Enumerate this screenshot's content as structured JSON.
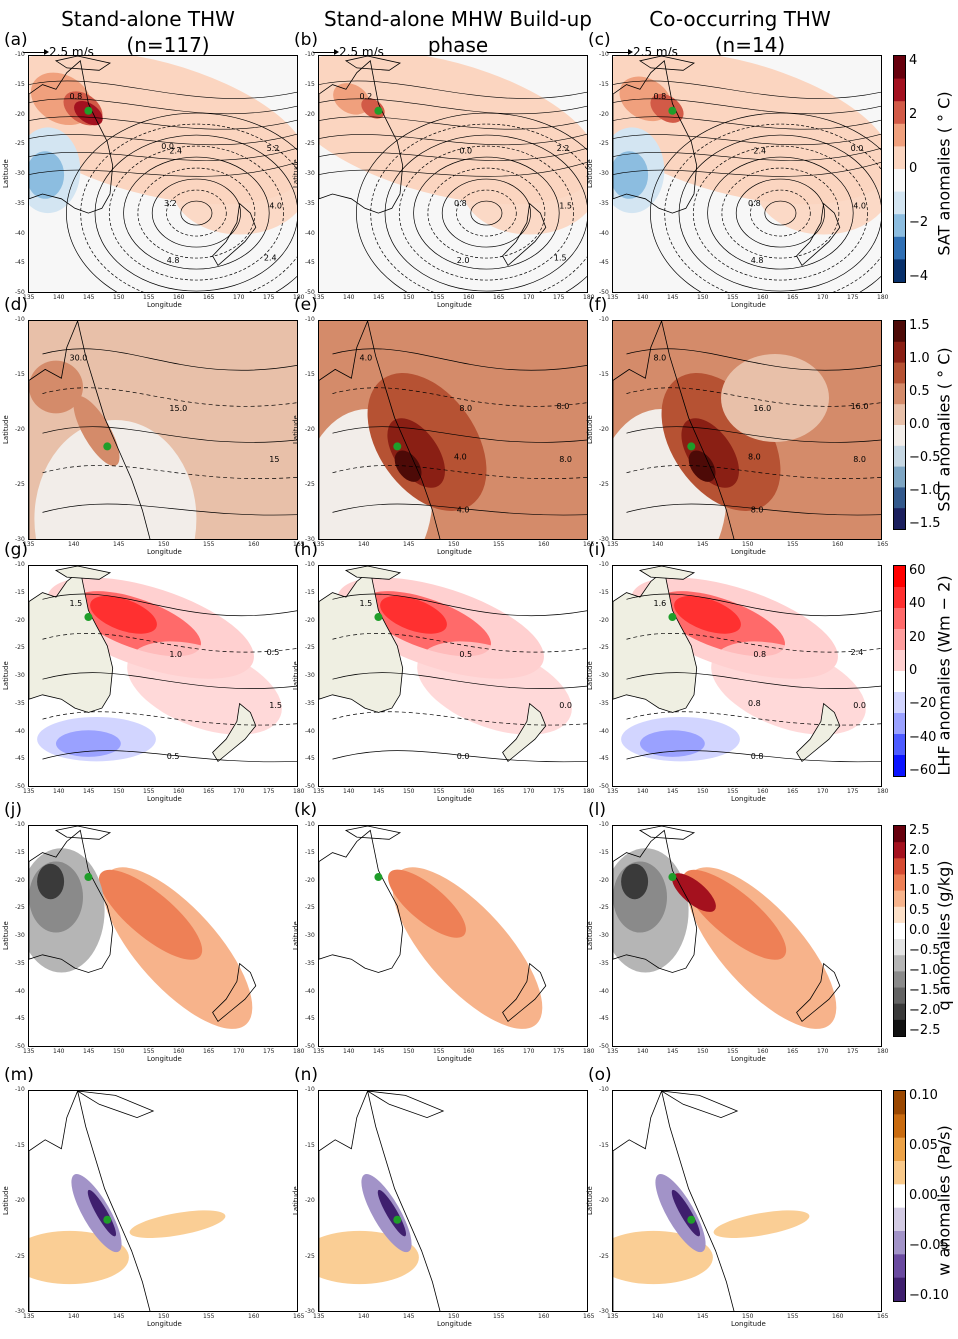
{
  "columns": [
    {
      "line1": "Stand-alone THW",
      "line2": "(n=117)"
    },
    {
      "line1": "Stand-alone MHW Build-up",
      "line2": "phase"
    },
    {
      "line1": "Co-occurring THW",
      "line2": "(n=14)"
    }
  ],
  "wind_reference": "2.5 m/s",
  "axis_titles": {
    "x": "Longitude",
    "y": "Latitude"
  },
  "ticks": {
    "wide_lon": [
      "135",
      "140",
      "145",
      "150",
      "155",
      "160",
      "165",
      "170",
      "175",
      "180"
    ],
    "wide_lat": [
      "-10",
      "-15",
      "-20",
      "-25",
      "-30",
      "-35",
      "-40",
      "-45",
      "-50"
    ],
    "narrow_lon": [
      "135",
      "140",
      "145",
      "150",
      "155",
      "160",
      "165"
    ],
    "narrow_lat": [
      "-10",
      "-15",
      "-20",
      "-25",
      "-30"
    ]
  },
  "rows": [
    {
      "labels": [
        "(a)",
        "(b)",
        "(c)"
      ],
      "cbar_label": "SAT anomalies ( ° C)",
      "cbar_ticks": [
        "4",
        "2",
        "0",
        "−2",
        "−4"
      ],
      "contours": [
        [
          "0.8",
          "2.4",
          "4.0",
          "4.8",
          "5.2",
          "3.2",
          "2.4",
          "0.0"
        ],
        [
          "0.2",
          "0.0",
          "1.5",
          "2.0",
          "2.2",
          "0.8",
          "1.5"
        ],
        [
          "0.8",
          "2.4",
          "4.0",
          "4.8",
          "0.0",
          "0.8"
        ]
      ]
    },
    {
      "labels": [
        "(d)",
        "(e)",
        "(f)"
      ],
      "cbar_label": "SST anomalies ( ° C)",
      "cbar_ticks": [
        "1.5",
        "1.0",
        "0.5",
        "0.0",
        "−0.5",
        "−1.0",
        "−1.5"
      ],
      "contours": [
        [
          "30.0",
          "15.0",
          "15"
        ],
        [
          "4.0",
          "8.0",
          "8.0",
          "4.0",
          "8.0",
          "4.0"
        ],
        [
          "8.0",
          "16.0",
          "8.0",
          "8.0",
          "16.0",
          "8.0"
        ]
      ]
    },
    {
      "labels": [
        "(g)",
        "(h)",
        "(i)"
      ],
      "cbar_label": "LHF anomalies (Wm − 2)",
      "cbar_ticks": [
        "60",
        "40",
        "20",
        "0",
        "−20",
        "−40",
        "−60"
      ],
      "contours": [
        [
          "1.5",
          "1.0",
          "1.5",
          "0.5",
          "0.5"
        ],
        [
          "1.5",
          "0.5",
          "0.0",
          "0.0"
        ],
        [
          "1.6",
          "0.8",
          "0.0",
          "0.8",
          "2.4",
          "0.8"
        ]
      ]
    },
    {
      "labels": [
        "(j)",
        "(k)",
        "(l)"
      ],
      "cbar_label": "q anomalies (g/kg)",
      "cbar_ticks": [
        "2.5",
        "2.0",
        "1.5",
        "1.0",
        "0.5",
        "0.0",
        "−0.5",
        "−1.0",
        "−1.5",
        "−2.0",
        "−2.5"
      ],
      "contours": [
        [],
        [],
        []
      ]
    },
    {
      "labels": [
        "(m)",
        "(n)",
        "(o)"
      ],
      "cbar_label": "w anomalies (Pa/s)",
      "cbar_ticks": [
        "0.10",
        "0.05",
        "0.00",
        "−0.05",
        "−0.10"
      ],
      "contours": [
        [],
        [],
        []
      ]
    }
  ],
  "colors": {
    "sat": [
      "#08306b",
      "#2f6fb4",
      "#8cbde0",
      "#d3e5f2",
      "#f7f7f7",
      "#fbd5c0",
      "#f0a07d",
      "#d25a47",
      "#a3111f",
      "#67000d"
    ],
    "sst": [
      "#1b1f5e",
      "#33598c",
      "#7ea6c4",
      "#c6d7e3",
      "#f2ede9",
      "#e8c0a9",
      "#d48b6a",
      "#b65233",
      "#8a1f14",
      "#4d0a07"
    ],
    "lhf": [
      "#0b14ff",
      "#4d5bff",
      "#9aa1ff",
      "#d2d5ff",
      "#ffffff",
      "#ffd0d0",
      "#ff9e9e",
      "#ff6a6a",
      "#ff3030",
      "#ff0000"
    ],
    "q": [
      "#111111",
      "#3a3a3a",
      "#636363",
      "#8a8a8a",
      "#b5b5b5",
      "#e3e3e3",
      "#ffffff",
      "#fde0c8",
      "#f7b38b",
      "#ee8056",
      "#d64b33",
      "#a4111e",
      "#67000d"
    ],
    "w": [
      "#3f1f6e",
      "#6a4aa0",
      "#a293c8",
      "#d3cbe4",
      "#ffffff",
      "#f9c98a",
      "#eca247",
      "#c96b0f",
      "#9a4700"
    ],
    "land": "#efefe2",
    "marker": "#1f9e2a"
  }
}
